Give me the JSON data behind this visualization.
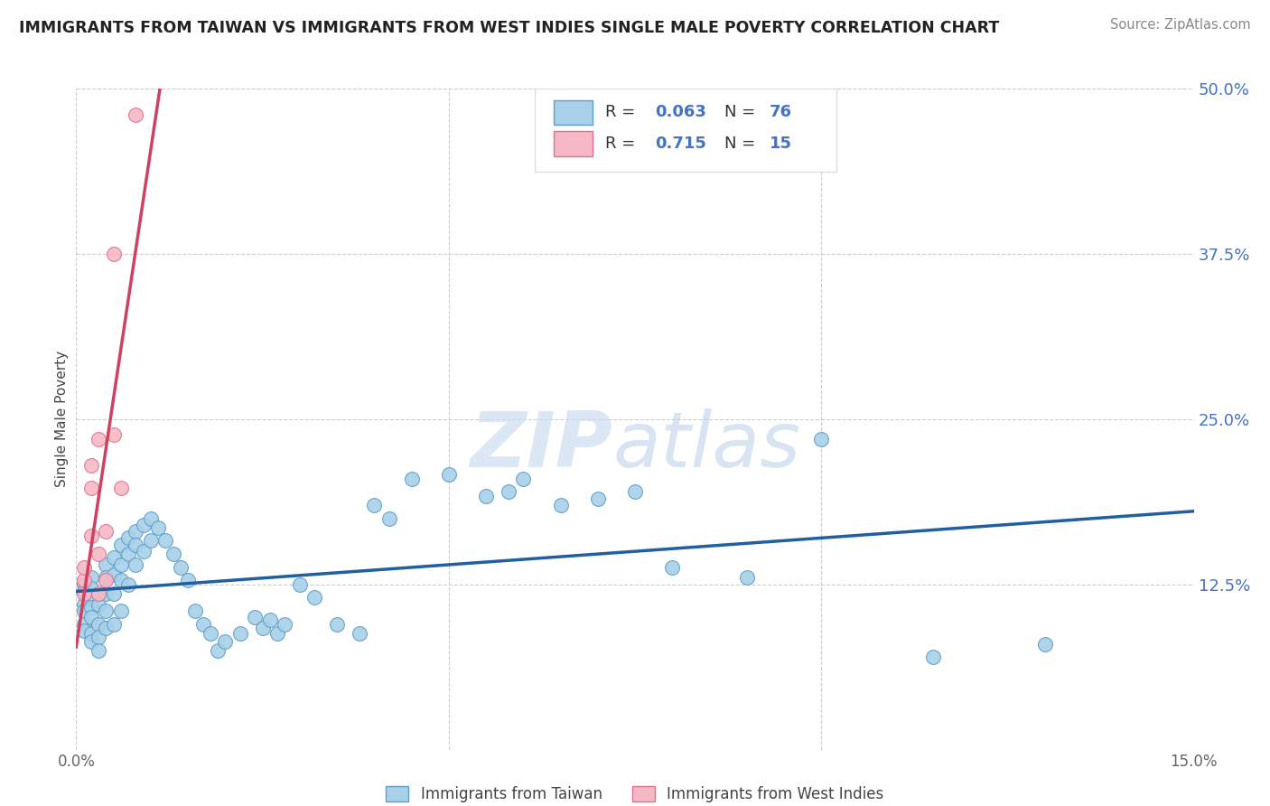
{
  "title": "IMMIGRANTS FROM TAIWAN VS IMMIGRANTS FROM WEST INDIES SINGLE MALE POVERTY CORRELATION CHART",
  "source": "Source: ZipAtlas.com",
  "ylabel": "Single Male Poverty",
  "xlim": [
    0.0,
    0.15
  ],
  "ylim": [
    0.0,
    0.5
  ],
  "yticks": [
    0.0,
    0.125,
    0.25,
    0.375,
    0.5
  ],
  "yticklabels": [
    "",
    "12.5%",
    "25.0%",
    "37.5%",
    "50.0%"
  ],
  "xtick_positions": [
    0.0,
    0.15
  ],
  "xticklabels": [
    "0.0%",
    "15.0%"
  ],
  "taiwan_R": 0.063,
  "taiwan_N": 76,
  "westindies_R": 0.715,
  "westindies_N": 15,
  "taiwan_color": "#a8d0e8",
  "taiwan_edge_color": "#5b9ec9",
  "taiwan_line_color": "#2060a0",
  "westindies_color": "#f5b8c4",
  "westindies_edge_color": "#e07090",
  "westindies_line_color": "#d04060",
  "taiwan_x": [
    0.001,
    0.001,
    0.001,
    0.001,
    0.001,
    0.001,
    0.002,
    0.002,
    0.002,
    0.002,
    0.002,
    0.002,
    0.002,
    0.003,
    0.003,
    0.003,
    0.003,
    0.003,
    0.004,
    0.004,
    0.004,
    0.004,
    0.004,
    0.005,
    0.005,
    0.005,
    0.005,
    0.006,
    0.006,
    0.006,
    0.006,
    0.007,
    0.007,
    0.007,
    0.008,
    0.008,
    0.008,
    0.009,
    0.009,
    0.01,
    0.01,
    0.011,
    0.012,
    0.013,
    0.014,
    0.015,
    0.016,
    0.017,
    0.018,
    0.019,
    0.02,
    0.022,
    0.024,
    0.025,
    0.026,
    0.027,
    0.028,
    0.03,
    0.032,
    0.035,
    0.038,
    0.04,
    0.042,
    0.045,
    0.05,
    0.055,
    0.058,
    0.06,
    0.065,
    0.07,
    0.075,
    0.08,
    0.09,
    0.1,
    0.115,
    0.13
  ],
  "taiwan_y": [
    0.11,
    0.125,
    0.12,
    0.105,
    0.095,
    0.09,
    0.13,
    0.122,
    0.115,
    0.108,
    0.1,
    0.088,
    0.082,
    0.118,
    0.11,
    0.095,
    0.085,
    0.075,
    0.14,
    0.13,
    0.118,
    0.105,
    0.092,
    0.145,
    0.132,
    0.118,
    0.095,
    0.155,
    0.14,
    0.128,
    0.105,
    0.16,
    0.148,
    0.125,
    0.165,
    0.155,
    0.14,
    0.17,
    0.15,
    0.175,
    0.158,
    0.168,
    0.158,
    0.148,
    0.138,
    0.128,
    0.105,
    0.095,
    0.088,
    0.075,
    0.082,
    0.088,
    0.1,
    0.092,
    0.098,
    0.088,
    0.095,
    0.125,
    0.115,
    0.095,
    0.088,
    0.185,
    0.175,
    0.205,
    0.208,
    0.192,
    0.195,
    0.205,
    0.185,
    0.19,
    0.195,
    0.138,
    0.13,
    0.235,
    0.07,
    0.08
  ],
  "westindies_x": [
    0.001,
    0.001,
    0.001,
    0.002,
    0.002,
    0.002,
    0.003,
    0.003,
    0.003,
    0.004,
    0.004,
    0.005,
    0.005,
    0.006,
    0.008
  ],
  "westindies_y": [
    0.118,
    0.128,
    0.138,
    0.162,
    0.198,
    0.215,
    0.235,
    0.148,
    0.118,
    0.165,
    0.128,
    0.375,
    0.238,
    0.198,
    0.48
  ]
}
